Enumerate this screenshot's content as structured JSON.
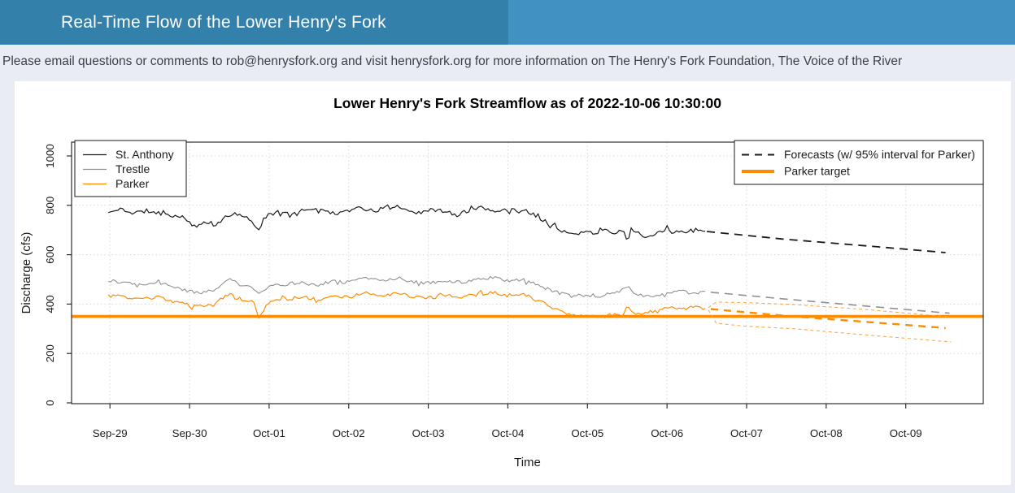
{
  "header": {
    "title": "Real-Time Flow of the Lower Henry's Fork",
    "bg_left": "#3380ab",
    "bg_right": "#4291c3"
  },
  "subtitle": {
    "text": "Please email questions or comments to rob@henrysfork.org and visit henrysfork.org for more information on The Henry's Fork Foundation, The Voice of the River"
  },
  "chart_data": {
    "type": "line",
    "title": "Lower Henry's Fork Streamflow as of 2022-10-06 10:30:00",
    "xlabel": "Time",
    "ylabel": "Discharge (cfs)",
    "ylim": [
      0,
      1056
    ],
    "y_ticks": [
      0,
      200,
      400,
      600,
      800,
      1000
    ],
    "x_ticks": [
      "Sep-29",
      "Sep-30",
      "Oct-01",
      "Oct-02",
      "Oct-03",
      "Oct-04",
      "Oct-05",
      "Oct-06",
      "Oct-07",
      "Oct-08",
      "Oct-09"
    ],
    "grid": "dotted",
    "colors": {
      "st_anthony": "#1a1a1a",
      "trestle": "#909090",
      "parker": "#ff8c00",
      "parker_interval": "#ffa64d",
      "gridline": "#d8d8d8",
      "axis": "#2e2e2e"
    },
    "legend_left": {
      "entries": [
        {
          "label": "St. Anthony",
          "color": "#1a1a1a",
          "style": "solid"
        },
        {
          "label": "Trestle",
          "color": "#909090",
          "style": "solid"
        },
        {
          "label": "Parker",
          "color": "#ff8c00",
          "style": "solid"
        }
      ]
    },
    "legend_right": {
      "entries": [
        {
          "label": "Forecasts (w/ 95% interval for Parker)",
          "color": "#1a1a1a",
          "style": "dashed"
        },
        {
          "label": "Parker target",
          "color": "#ff8c00",
          "style": "thick"
        }
      ]
    },
    "target": {
      "name": "Parker target",
      "value_cfs": 350,
      "color": "#ff8c00"
    },
    "observed_series": [
      {
        "name": "St. Anthony",
        "color": "#1a1a1a",
        "width": 1.2,
        "noise_amp": 8,
        "seed": 11,
        "anchors_day_cfs": [
          [
            -0.02,
            770
          ],
          [
            0.15,
            785
          ],
          [
            0.3,
            768
          ],
          [
            0.45,
            778
          ],
          [
            0.6,
            770
          ],
          [
            0.75,
            762
          ],
          [
            0.9,
            752
          ],
          [
            1.0,
            728
          ],
          [
            1.1,
            712
          ],
          [
            1.2,
            730
          ],
          [
            1.3,
            718
          ],
          [
            1.45,
            750
          ],
          [
            1.6,
            765
          ],
          [
            1.75,
            748
          ],
          [
            1.87,
            700
          ],
          [
            1.95,
            755
          ],
          [
            2.1,
            775
          ],
          [
            2.25,
            762
          ],
          [
            2.4,
            780
          ],
          [
            2.55,
            788
          ],
          [
            2.7,
            775
          ],
          [
            2.85,
            768
          ],
          [
            3.0,
            778
          ],
          [
            3.15,
            790
          ],
          [
            3.3,
            776
          ],
          [
            3.45,
            788
          ],
          [
            3.6,
            795
          ],
          [
            3.75,
            780
          ],
          [
            3.9,
            770
          ],
          [
            4.05,
            782
          ],
          [
            4.2,
            776
          ],
          [
            4.35,
            760
          ],
          [
            4.5,
            778
          ],
          [
            4.65,
            790
          ],
          [
            4.8,
            775
          ],
          [
            4.95,
            785
          ],
          [
            5.1,
            778
          ],
          [
            5.25,
            775
          ],
          [
            5.4,
            750
          ],
          [
            5.55,
            722
          ],
          [
            5.7,
            695
          ],
          [
            5.85,
            680
          ],
          [
            6.0,
            692
          ],
          [
            6.1,
            686
          ],
          [
            6.2,
            700
          ],
          [
            6.3,
            688
          ],
          [
            6.45,
            702
          ],
          [
            6.5,
            645
          ],
          [
            6.55,
            705
          ],
          [
            6.7,
            680
          ],
          [
            6.8,
            668
          ],
          [
            6.9,
            690
          ],
          [
            7.0,
            705
          ],
          [
            7.1,
            695
          ],
          [
            7.2,
            688
          ],
          [
            7.35,
            700
          ],
          [
            7.5,
            695
          ]
        ]
      },
      {
        "name": "Trestle",
        "color": "#909090",
        "width": 1.1,
        "noise_amp": 7,
        "seed": 22,
        "anchors_day_cfs": [
          [
            -0.02,
            495
          ],
          [
            0.2,
            488
          ],
          [
            0.4,
            482
          ],
          [
            0.6,
            490
          ],
          [
            0.8,
            470
          ],
          [
            1.0,
            452
          ],
          [
            1.15,
            445
          ],
          [
            1.3,
            455
          ],
          [
            1.5,
            502
          ],
          [
            1.65,
            478
          ],
          [
            1.8,
            468
          ],
          [
            1.87,
            440
          ],
          [
            2.0,
            472
          ],
          [
            2.2,
            480
          ],
          [
            2.4,
            488
          ],
          [
            2.6,
            478
          ],
          [
            2.8,
            492
          ],
          [
            3.0,
            488
          ],
          [
            3.2,
            505
          ],
          [
            3.4,
            495
          ],
          [
            3.6,
            502
          ],
          [
            3.8,
            492
          ],
          [
            4.0,
            485
          ],
          [
            4.2,
            495
          ],
          [
            4.4,
            488
          ],
          [
            4.6,
            498
          ],
          [
            4.8,
            508
          ],
          [
            5.0,
            495
          ],
          [
            5.2,
            498
          ],
          [
            5.4,
            472
          ],
          [
            5.6,
            448
          ],
          [
            5.8,
            432
          ],
          [
            6.0,
            440
          ],
          [
            6.2,
            430
          ],
          [
            6.4,
            448
          ],
          [
            6.5,
            470
          ],
          [
            6.6,
            445
          ],
          [
            6.8,
            428
          ],
          [
            7.0,
            442
          ],
          [
            7.2,
            452
          ],
          [
            7.35,
            445
          ],
          [
            7.5,
            448
          ]
        ]
      },
      {
        "name": "Parker",
        "color": "#ff8c00",
        "width": 1.2,
        "noise_amp": 7,
        "seed": 33,
        "anchors_day_cfs": [
          [
            -0.02,
            435
          ],
          [
            0.2,
            428
          ],
          [
            0.4,
            420
          ],
          [
            0.6,
            428
          ],
          [
            0.8,
            408
          ],
          [
            1.0,
            395
          ],
          [
            1.15,
            388
          ],
          [
            1.3,
            398
          ],
          [
            1.5,
            442
          ],
          [
            1.65,
            418
          ],
          [
            1.8,
            408
          ],
          [
            1.87,
            345
          ],
          [
            2.0,
            412
          ],
          [
            2.2,
            420
          ],
          [
            2.4,
            428
          ],
          [
            2.6,
            418
          ],
          [
            2.8,
            432
          ],
          [
            3.0,
            428
          ],
          [
            3.2,
            445
          ],
          [
            3.4,
            435
          ],
          [
            3.6,
            442
          ],
          [
            3.8,
            432
          ],
          [
            4.0,
            425
          ],
          [
            4.2,
            435
          ],
          [
            4.4,
            428
          ],
          [
            4.6,
            438
          ],
          [
            4.8,
            448
          ],
          [
            5.0,
            435
          ],
          [
            5.2,
            438
          ],
          [
            5.4,
            412
          ],
          [
            5.6,
            378
          ],
          [
            5.8,
            355
          ],
          [
            6.0,
            352
          ],
          [
            6.15,
            345
          ],
          [
            6.3,
            358
          ],
          [
            6.45,
            352
          ],
          [
            6.5,
            398
          ],
          [
            6.6,
            360
          ],
          [
            6.8,
            368
          ],
          [
            7.0,
            390
          ],
          [
            7.15,
            378
          ],
          [
            7.3,
            388
          ],
          [
            7.5,
            385
          ]
        ]
      }
    ],
    "forecast_series": [
      {
        "name": "St. Anthony forecast",
        "color": "#1a1a1a",
        "width": 1.8,
        "dash": "10,7",
        "anchors_day_cfs": [
          [
            7.5,
            694
          ],
          [
            8.5,
            662
          ],
          [
            9.5,
            636
          ],
          [
            10.52,
            608
          ]
        ]
      },
      {
        "name": "Trestle forecast",
        "color": "#909090",
        "width": 1.6,
        "dash": "10,7",
        "anchors_day_cfs": [
          [
            7.55,
            448
          ],
          [
            8.5,
            420
          ],
          [
            9.5,
            392
          ],
          [
            10.55,
            363
          ]
        ]
      },
      {
        "name": "Parker forecast",
        "color": "#ff8c00",
        "width": 2.4,
        "dash": "9,7",
        "anchors_day_cfs": [
          [
            7.55,
            380
          ],
          [
            8.5,
            352
          ],
          [
            9.5,
            328
          ],
          [
            10.5,
            303
          ]
        ]
      },
      {
        "name": "Parker 95% interval upper",
        "color": "#ffa64d",
        "width": 1.1,
        "dash": "4,3.5",
        "anchors_day_cfs": [
          [
            7.52,
            386
          ],
          [
            7.62,
            408
          ],
          [
            8.0,
            406
          ],
          [
            8.6,
            398
          ],
          [
            9.5,
            378
          ],
          [
            10.55,
            348
          ]
        ]
      },
      {
        "name": "Parker 95% interval lower",
        "color": "#ffa64d",
        "width": 1.1,
        "dash": "4,3.5",
        "anchors_day_cfs": [
          [
            7.52,
            376
          ],
          [
            7.62,
            322
          ],
          [
            8.0,
            310
          ],
          [
            8.6,
            300
          ],
          [
            9.5,
            275
          ],
          [
            10.6,
            246
          ]
        ]
      }
    ],
    "observed_end_label": "2022-10-06 10:30:00"
  }
}
